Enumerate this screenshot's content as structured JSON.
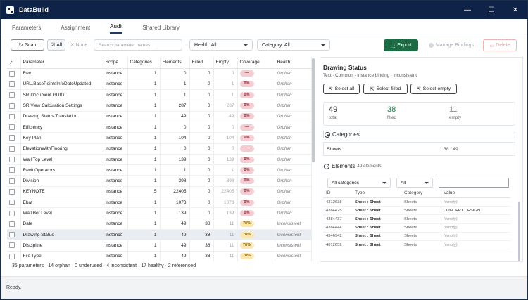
{
  "app": {
    "title": "DataBuild"
  },
  "tabs": [
    "Parameters",
    "Assignment",
    "Audit",
    "Shared Library"
  ],
  "toolbar": {
    "scan": "Scan",
    "all": "All",
    "none": "None",
    "search_placeholder": "Search parameter names...",
    "health": "Health: All",
    "category": "Category: All",
    "export": "Export",
    "manage": "Manage Bindings",
    "delete": "Delete"
  },
  "grid": {
    "columns": [
      "✓",
      "Parameter",
      "Scope",
      "Categories",
      "Elements",
      "Filled",
      "Empty",
      "Coverage",
      "Health"
    ],
    "rows": [
      [
        "Rev",
        "Instance",
        "1",
        "0",
        "0",
        "0",
        "—",
        "Orphan"
      ],
      [
        "URL.BasePointsInfoDateUpdated",
        "Instance",
        "1",
        "1",
        "0",
        "1",
        "0%",
        "Orphan"
      ],
      [
        "SR Document GUID",
        "Instance",
        "1",
        "1",
        "0",
        "1",
        "0%",
        "Orphan"
      ],
      [
        "SR View Calculation Settings",
        "Instance",
        "1",
        "287",
        "0",
        "287",
        "0%",
        "Orphan"
      ],
      [
        "Drawing Status Translation",
        "Instance",
        "1",
        "49",
        "0",
        "49",
        "0%",
        "Orphan"
      ],
      [
        "Efficiency",
        "Instance",
        "1",
        "0",
        "0",
        "0",
        "—",
        "Orphan"
      ],
      [
        "Key Plan",
        "Instance",
        "1",
        "104",
        "0",
        "104",
        "0%",
        "Orphan"
      ],
      [
        "ElevationWithFlooring",
        "Instance",
        "1",
        "0",
        "0",
        "0",
        "—",
        "Orphan"
      ],
      [
        "Wall Top Level",
        "Instance",
        "1",
        "139",
        "0",
        "139",
        "0%",
        "Orphan"
      ],
      [
        "Revit Operators",
        "Instance",
        "1",
        "1",
        "0",
        "1",
        "0%",
        "Orphan"
      ],
      [
        "Division",
        "Instance",
        "1",
        "398",
        "0",
        "398",
        "0%",
        "Orphan"
      ],
      [
        "KEYNOTE",
        "Instance",
        "5",
        "22405",
        "0",
        "22405",
        "0%",
        "Orphan"
      ],
      [
        "Ebat",
        "Instance",
        "1",
        "1073",
        "0",
        "1073",
        "0%",
        "Orphan"
      ],
      [
        "Wall Bot Level",
        "Instance",
        "1",
        "139",
        "0",
        "139",
        "0%",
        "Orphan"
      ],
      [
        "Date",
        "Instance",
        "1",
        "49",
        "38",
        "11",
        "78%",
        "Inconsistent"
      ],
      [
        "Drawing Status",
        "Instance",
        "1",
        "49",
        "38",
        "11",
        "78%",
        "Inconsistent"
      ],
      [
        "Discipline",
        "Instance",
        "1",
        "49",
        "38",
        "11",
        "78%",
        "Inconsistent"
      ],
      [
        "File Type",
        "Instance",
        "1",
        "49",
        "38",
        "11",
        "78%",
        "Inconsistent"
      ]
    ],
    "summary": "35 parameters · 14 orphan · 0 underused · 4 inconsistent · 17 healthy · 2 referenced"
  },
  "detail": {
    "title": "Drawing Status",
    "subtitle": "Text · Common · Instance binding · inconsistent",
    "select_all": "Select all",
    "select_filled": "Select filled",
    "select_empty": "Select empty",
    "stats": {
      "total": "49",
      "total_label": "total",
      "filled": "38",
      "filled_label": "filled",
      "empty": "11",
      "empty_label": "empty"
    },
    "categories_label": "Categories",
    "category_row": {
      "name": "Sheets",
      "count": "38 / 49"
    },
    "elements_label": "Elements",
    "elements_count": "49 elements",
    "filter_cat": "All categories",
    "filter_all": "All",
    "elements_columns": [
      "ID",
      "Type",
      "Category",
      "Value"
    ],
    "elements": [
      [
        "4312638",
        "Sheet : Sheet",
        "Sheets",
        "(empty)"
      ],
      [
        "4384425",
        "Sheet : Sheet",
        "Sheets",
        "CONCEPT DESIGN"
      ],
      [
        "4384437",
        "Sheet : Sheet",
        "Sheets",
        "(empty)"
      ],
      [
        "4384444",
        "Sheet : Sheet",
        "Sheets",
        "(empty)"
      ],
      [
        "4546942",
        "Sheet : Sheet",
        "Sheets",
        "(empty)"
      ],
      [
        "4812652",
        "Sheet : Sheet",
        "Sheets",
        "(empty)"
      ]
    ]
  },
  "status": "Ready.",
  "colors": {
    "titlebar": "#0e2347",
    "export": "#1c6b44",
    "coverage_zero": "#f3cdd1",
    "coverage_partial": "#fbe6b5"
  }
}
